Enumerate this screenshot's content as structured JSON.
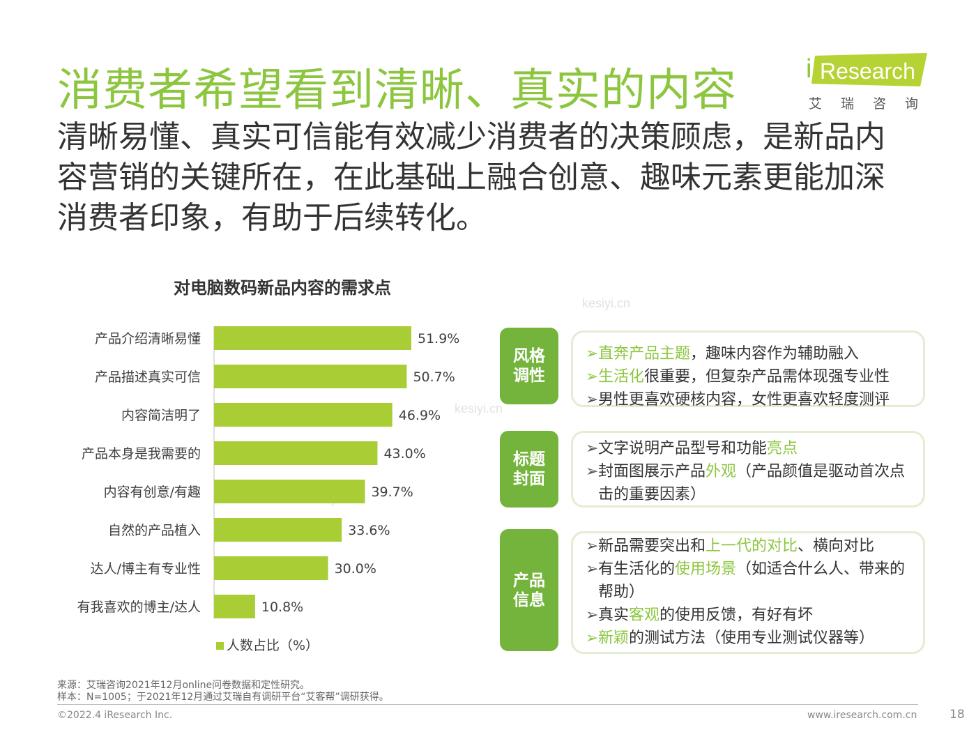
{
  "page": {
    "title": "消费者希望看到清晰、真实的内容",
    "subtitle": "清晰易懂、真实可信能有效减少消费者的决策顾虑，是新品内容营销的关键所在，在此基础上融合创意、趣味元素更能加深消费者印象，有助于后续转化。",
    "logo": {
      "i": "i",
      "text": "Research",
      "cn": "艾瑞咨询"
    },
    "watermark": "kesiyi.cn",
    "page_number": "18"
  },
  "chart_data": {
    "type": "bar",
    "orientation": "horizontal",
    "title": "对电脑数码新品内容的需求点",
    "categories": [
      "产品介绍清晰易懂",
      "产品描述真实可信",
      "内容简洁明了",
      "产品本身是我需要的",
      "内容有创意/有趣",
      "自然的产品植入",
      "达人/博主有专业性",
      "有我喜欢的博主/达人"
    ],
    "values": [
      51.9,
      50.7,
      46.9,
      43.0,
      39.7,
      33.6,
      30.0,
      10.8
    ],
    "value_labels": [
      "51.9%",
      "50.7%",
      "46.9%",
      "43.0%",
      "39.7%",
      "33.6%",
      "30.0%",
      "10.8%"
    ],
    "series": [
      {
        "name": "人数占比（%）",
        "values": [
          51.9,
          50.7,
          46.9,
          43.0,
          39.7,
          33.6,
          30.0,
          10.8
        ]
      }
    ],
    "xlim": [
      0,
      60
    ],
    "grid": false,
    "legend_position": "bottom",
    "bar_color": "#a8cd35"
  },
  "panels": [
    {
      "tag": "风格调性",
      "items": [
        {
          "parts": [
            {
              "t": "直奔产品主题",
              "hl": true
            },
            {
              "t": "，趣味内容作为辅助融入",
              "hl": false
            }
          ],
          "arrow_green": true
        },
        {
          "parts": [
            {
              "t": "生活化",
              "hl": true
            },
            {
              "t": "很重要，但复杂产品需体现强专业性",
              "hl": false
            }
          ],
          "arrow_green": true
        },
        {
          "parts": [
            {
              "t": "男性更喜欢硬核内容，女性更喜欢轻度测评",
              "hl": false
            }
          ],
          "arrow_green": false
        }
      ]
    },
    {
      "tag": "标题封面",
      "items": [
        {
          "parts": [
            {
              "t": "文字说明产品型号和功能",
              "hl": false
            },
            {
              "t": "亮点",
              "hl": true
            }
          ],
          "arrow_green": false
        },
        {
          "parts": [
            {
              "t": "封面图展示产品",
              "hl": false
            },
            {
              "t": "外观",
              "hl": true
            },
            {
              "t": "（产品颜值是驱动首次点击的重要因素）",
              "hl": false
            }
          ],
          "arrow_green": false
        }
      ]
    },
    {
      "tag": "产品信息",
      "items": [
        {
          "parts": [
            {
              "t": "新品需要突出和",
              "hl": false
            },
            {
              "t": "上一代的对比",
              "hl": true
            },
            {
              "t": "、横向对比",
              "hl": false
            }
          ],
          "arrow_green": false
        },
        {
          "parts": [
            {
              "t": "有生活化的",
              "hl": false
            },
            {
              "t": "使用场景",
              "hl": true
            },
            {
              "t": "（如适合什么人、带来的帮助）",
              "hl": false
            }
          ],
          "arrow_green": false
        },
        {
          "parts": [
            {
              "t": "真实",
              "hl": false
            },
            {
              "t": "客观",
              "hl": true
            },
            {
              "t": "的使用反馈，有好有坏",
              "hl": false
            }
          ],
          "arrow_green": false
        },
        {
          "parts": [
            {
              "t": "新颖",
              "hl": true
            },
            {
              "t": "的测试方法（使用专业测试仪器等）",
              "hl": false
            }
          ],
          "arrow_green": true
        }
      ]
    }
  ],
  "arrow_glyph": "➢",
  "footer": {
    "source": "来源：艾瑞咨询2021年12月online问卷数据和定性研究。",
    "sample": "样本：N=1005；于2021年12月通过艾瑞自有调研平台“艾客帮”调研获得。",
    "copyright": "©2022.4 iResearch Inc.",
    "website": "www.iresearch.com.cn"
  }
}
